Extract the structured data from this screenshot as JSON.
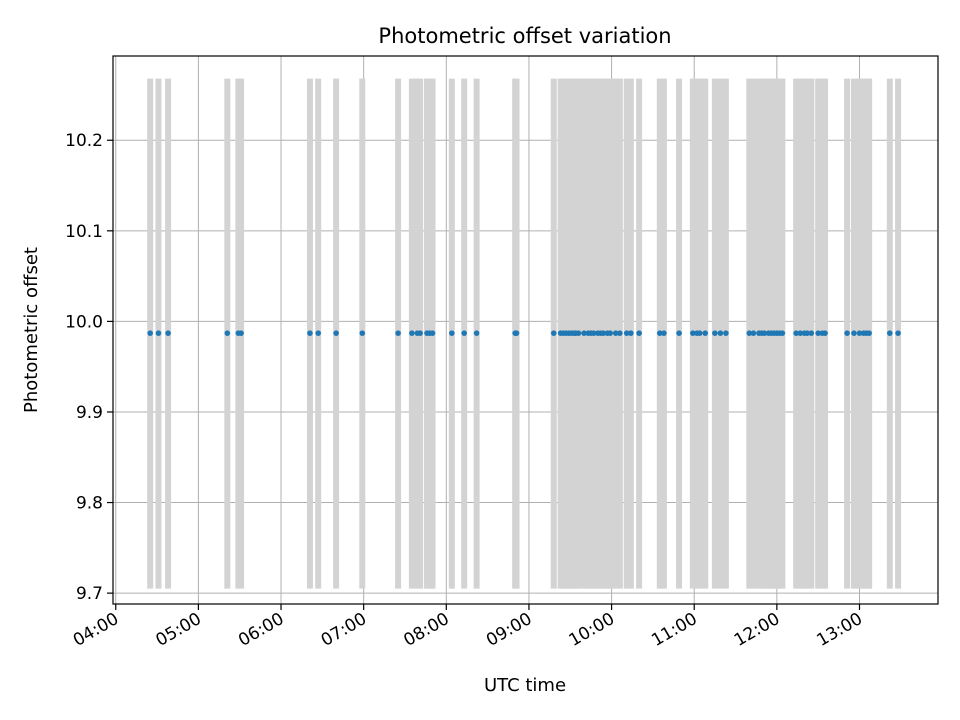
{
  "chart_data": {
    "type": "scatter",
    "title": "Photometric offset variation",
    "xlabel": "UTC time",
    "ylabel": "Photometric offset",
    "x_tick_labels": [
      "04:00",
      "05:00",
      "06:00",
      "07:00",
      "08:00",
      "09:00",
      "10:00",
      "11:00",
      "12:00",
      "13:00"
    ],
    "y_tick_labels": [
      "9.7",
      "9.8",
      "9.9",
      "10.0",
      "10.1",
      "10.2"
    ],
    "y_ticks": [
      9.7,
      9.8,
      9.9,
      10.0,
      10.1,
      10.2
    ],
    "xlim": [
      "03:58",
      "13:57"
    ],
    "ylim": [
      9.688,
      10.293
    ],
    "grid": true,
    "points": {
      "y": 9.987,
      "color": "#1f77b4",
      "x": [
        "04:25",
        "04:31",
        "04:38",
        "05:21",
        "05:29",
        "05:31",
        "06:21",
        "06:27",
        "06:40",
        "06:59",
        "07:25",
        "07:35",
        "07:39",
        "07:41",
        "07:46",
        "07:48",
        "07:50",
        "08:04",
        "08:13",
        "08:22",
        "08:50",
        "08:51",
        "09:18",
        "09:23",
        "09:25",
        "09:27",
        "09:29",
        "09:31",
        "09:33",
        "09:34",
        "09:36",
        "09:40",
        "09:43",
        "09:45",
        "09:47",
        "09:50",
        "09:52",
        "09:54",
        "09:57",
        "09:59",
        "10:03",
        "10:06",
        "10:11",
        "10:14",
        "10:20",
        "10:35",
        "10:38",
        "10:49",
        "10:59",
        "11:02",
        "11:04",
        "11:08",
        "11:15",
        "11:19",
        "11:23",
        "11:40",
        "11:43",
        "11:47",
        "11:49",
        "11:51",
        "11:54",
        "11:56",
        "11:58",
        "12:00",
        "12:02",
        "12:04",
        "12:14",
        "12:17",
        "12:20",
        "12:22",
        "12:25",
        "12:30",
        "12:33",
        "12:35",
        "12:51",
        "12:56",
        "13:00",
        "13:03",
        "13:05",
        "13:07",
        "13:22",
        "13:28"
      ]
    },
    "error_bars": {
      "color": "#d3d3d3",
      "ymin": 9.705,
      "ymax": 10.268
    }
  }
}
